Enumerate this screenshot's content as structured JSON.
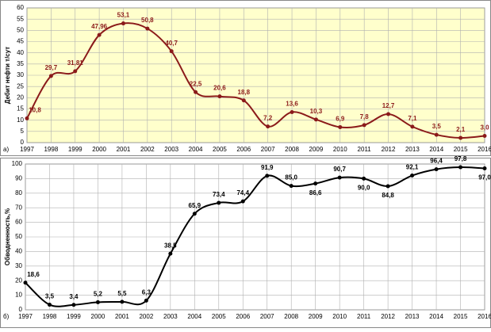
{
  "chart_data": [
    {
      "type": "line",
      "annotation": "а)",
      "y_label": "Дебит нефти т/сут",
      "categories": [
        "1997",
        "1998",
        "1999",
        "2000",
        "2001",
        "2002",
        "2003",
        "2004",
        "2005",
        "2006",
        "2007",
        "2008",
        "2009",
        "2010",
        "2011",
        "2012",
        "2013",
        "2014",
        "2015",
        "2016"
      ],
      "series": [
        {
          "color": "#8b1a1a",
          "values": [
            10.8,
            29.7,
            31.81,
            47.96,
            53.1,
            50.8,
            40.7,
            22.5,
            20.6,
            18.8,
            7.2,
            13.6,
            10.3,
            6.9,
            7.8,
            12.7,
            7.1,
            3.5,
            2.1,
            3.0
          ],
          "value_labels": [
            "10,8",
            "29,7",
            "31,81",
            "47,96",
            "53,1",
            "50,8",
            "40,7",
            "22,5",
            "20,6",
            "18,8",
            "7,2",
            "13,6",
            "10,3",
            "6,9",
            "7,8",
            "12,7",
            "7,1",
            "3,5",
            "2,1",
            "3,0"
          ]
        }
      ],
      "ylim": [
        0,
        60
      ],
      "yticks": [
        0,
        5,
        10,
        15,
        20,
        25,
        30,
        35,
        40,
        45,
        50,
        55,
        60
      ],
      "grid": true,
      "background": "#ffffcc"
    },
    {
      "type": "line",
      "annotation": "б)",
      "y_label": "Обводненность,%",
      "categories": [
        "1997",
        "1998",
        "1999",
        "2000",
        "2001",
        "2002",
        "2003",
        "2004",
        "2005",
        "2006",
        "2007",
        "2008",
        "2009",
        "2010",
        "2011",
        "2012",
        "2013",
        "2014",
        "2015",
        "2016"
      ],
      "series": [
        {
          "color": "#000000",
          "values": [
            18.6,
            3.5,
            3.4,
            5.2,
            5.5,
            6.3,
            38.5,
            65.9,
            73.4,
            74.4,
            91.9,
            85.0,
            86.6,
            90.7,
            90.0,
            84.8,
            92.1,
            96.4,
            97.8,
            97.0
          ],
          "value_labels": [
            "18,6",
            "3,5",
            "3,4",
            "5,2",
            "5,5",
            "6,3",
            "38,5",
            "65,9",
            "73,4",
            "74,4",
            "91,9",
            "85,0",
            "86,6",
            "90,7",
            "90,0",
            "84,8",
            "92,1",
            "96,4",
            "97,8",
            "97,0"
          ]
        }
      ],
      "ylim": [
        0,
        100
      ],
      "yticks": [
        0,
        10,
        20,
        30,
        40,
        50,
        60,
        70,
        80,
        90,
        100
      ],
      "grid": true,
      "background": "#ffffff"
    }
  ]
}
